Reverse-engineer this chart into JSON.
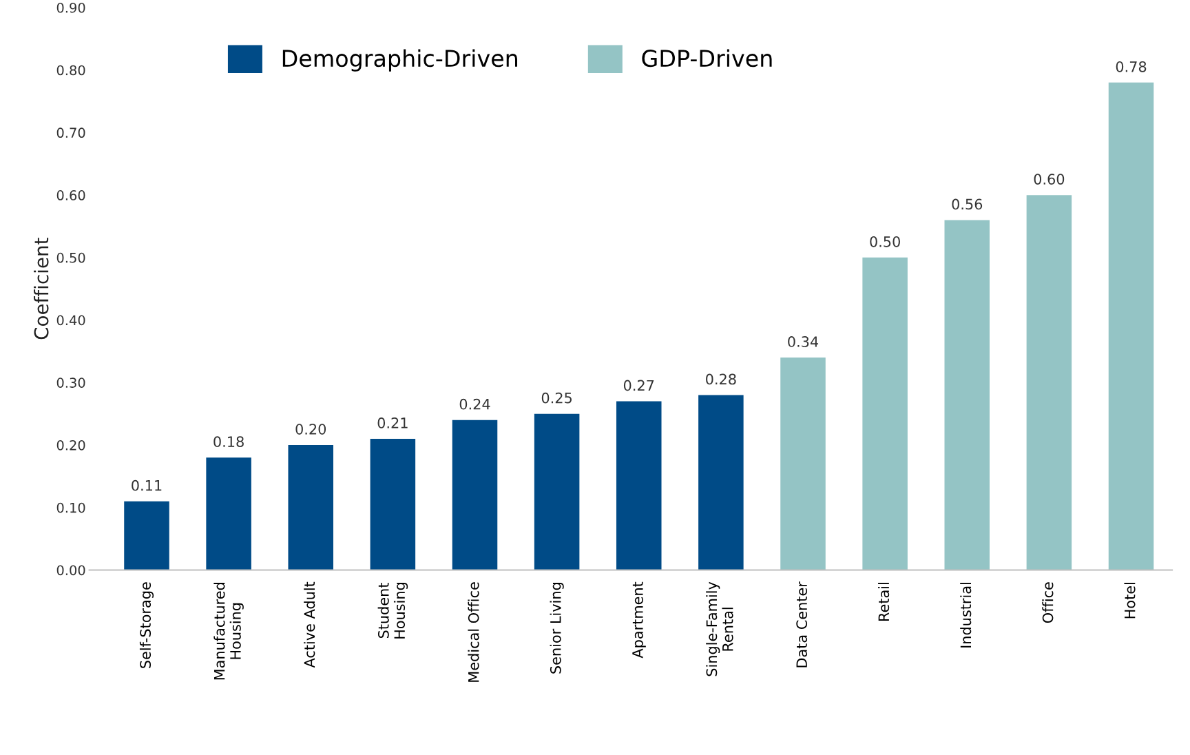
{
  "chart_data": {
    "type": "bar",
    "ylabel": "Coefficient",
    "categories": [
      "Self-Storage",
      "Manufactured\nHousing",
      "Active Adult",
      "Student\nHousing",
      "Medical Office",
      "Senior Living",
      "Apartment",
      "Single-Family\nRental",
      "Data Center",
      "Retail",
      "Industrial",
      "Office",
      "Hotel"
    ],
    "series": [
      {
        "name": "Demographic-Driven",
        "color": "#004b87",
        "values": [
          0.11,
          0.18,
          0.2,
          0.21,
          0.24,
          0.25,
          0.27,
          0.28,
          null,
          null,
          null,
          null,
          null
        ],
        "value_labels": [
          "0.11",
          "0.18",
          "0.20",
          "0.21",
          "0.24",
          "0.25",
          "0.27",
          "0.28",
          null,
          null,
          null,
          null,
          null
        ]
      },
      {
        "name": "GDP-Driven",
        "color": "#94c4c5",
        "values": [
          null,
          null,
          null,
          null,
          null,
          null,
          null,
          null,
          0.34,
          0.5,
          0.56,
          0.6,
          0.78
        ],
        "value_labels": [
          null,
          null,
          null,
          null,
          null,
          null,
          null,
          null,
          "0.34",
          "0.50",
          "0.56",
          "0.60",
          "0.78"
        ]
      }
    ],
    "ylim": [
      0,
      0.9
    ],
    "yticks": [
      {
        "value": 0,
        "label": "0.00"
      },
      {
        "value": 0.1,
        "label": "0.10"
      },
      {
        "value": 0.2,
        "label": "0.20"
      },
      {
        "value": 0.3,
        "label": "0.30"
      },
      {
        "value": 0.4,
        "label": "0.40"
      },
      {
        "value": 0.5,
        "label": "0.50"
      },
      {
        "value": 0.6,
        "label": "0.60"
      },
      {
        "value": 0.7,
        "label": "0.70"
      },
      {
        "value": 0.8,
        "label": "0.80"
      },
      {
        "value": 0.9,
        "label": "0.90"
      }
    ],
    "grid": false,
    "legend": "top"
  }
}
